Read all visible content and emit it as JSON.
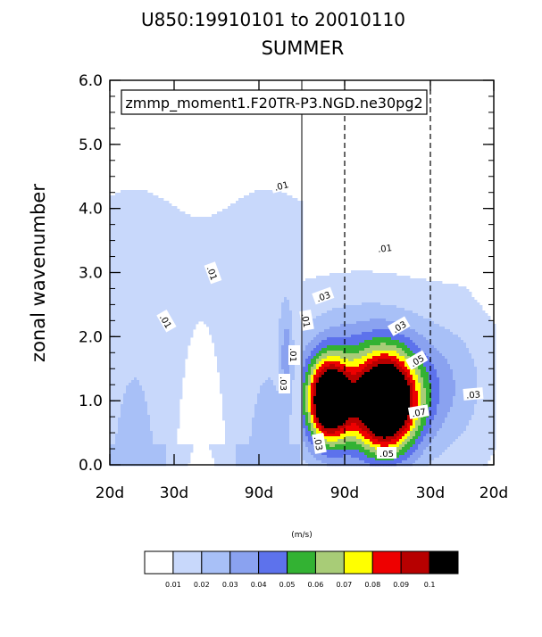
{
  "chart_data": {
    "type": "contour",
    "title": "U850:19910101 to 20010110",
    "subtitle": "SUMMER",
    "case_label": "zmmp_moment1.F20TR-P3.NGD.ne30pg2",
    "ylabel": "zonal wavenumber",
    "units": "(m/s)",
    "ylim": [
      0,
      6
    ],
    "y_ticks": [
      "0.0",
      "1.0",
      "2.0",
      "3.0",
      "4.0",
      "5.0",
      "6.0"
    ],
    "x_tick_labels": [
      "20d",
      "30d",
      "90d",
      "90d",
      "30d",
      "20d"
    ],
    "contour_levels": [
      0.01,
      0.02,
      0.03,
      0.04,
      0.05,
      0.06,
      0.07,
      0.08,
      0.09,
      0.1
    ],
    "level_labels": [
      "0.01",
      "0.02",
      "0.03",
      "0.04",
      "0.05",
      "0.06",
      "0.07",
      "0.08",
      "0.09",
      "0.1"
    ],
    "colors": [
      "#ffffff",
      "#c8d8fb",
      "#a8c0f7",
      "#8aa2f0",
      "#5d72ec",
      "#33b233",
      "#a8cc77",
      "#ffff00",
      "#ee0000",
      "#b70000",
      "#000000"
    ],
    "contour_labels": [
      ".01",
      ".01",
      ".01",
      ".01",
      ".01",
      ".01",
      ".03",
      ".03",
      ".03",
      ".03",
      ".05",
      ".05",
      ".07",
      ".03"
    ]
  }
}
